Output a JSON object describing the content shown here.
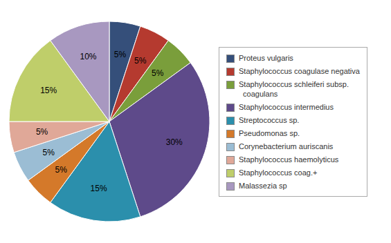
{
  "chart_data": {
    "type": "pie",
    "categories": [
      "Proteus vulgaris",
      "Staphylococcus coagulase negativa",
      "Staphylococcus schleiferi subsp.\n  coagulans",
      "Staphylococcus intermedius",
      "Streptococcus sp.",
      "Pseudomonas sp.",
      "Corynebacterium auriscanis",
      "Staphylococcus haemolyticus",
      "Staphylococcus coag.+",
      "Malassezia sp"
    ],
    "values": [
      5,
      5,
      5,
      30,
      15,
      5,
      5,
      5,
      15,
      10
    ],
    "colors": [
      "#354f7a",
      "#b53a2f",
      "#7a9e3b",
      "#5e4a8a",
      "#2b8fac",
      "#d4792a",
      "#9bbdd4",
      "#e0a898",
      "#bfce6a",
      "#a898c0"
    ],
    "value_labels": [
      "5%",
      "5%",
      "5%",
      "30%",
      "15%",
      "5%",
      "5%",
      "5%",
      "15%",
      "10%"
    ],
    "data_labels": true,
    "legend": "right"
  }
}
